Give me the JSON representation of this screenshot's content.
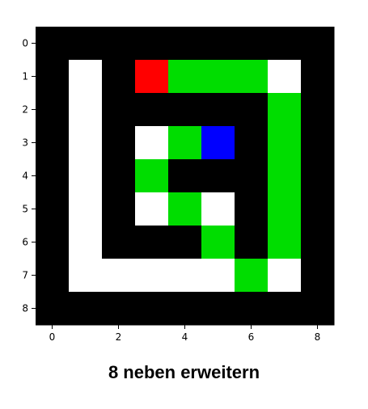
{
  "caption": "8 neben erweitern",
  "palette": {
    "0": "#000000",
    "1": "#ffffff",
    "2": "#00dd00",
    "3": "#ff0000",
    "4": "#0000ff"
  },
  "grid": {
    "rows": 9,
    "cols": 9,
    "cells": [
      [
        0,
        0,
        0,
        0,
        0,
        0,
        0,
        0,
        0
      ],
      [
        0,
        1,
        0,
        3,
        2,
        2,
        2,
        1,
        0
      ],
      [
        0,
        1,
        0,
        0,
        0,
        0,
        0,
        2,
        0
      ],
      [
        0,
        1,
        0,
        1,
        2,
        4,
        0,
        2,
        0
      ],
      [
        0,
        1,
        0,
        2,
        0,
        0,
        0,
        2,
        0
      ],
      [
        0,
        1,
        0,
        1,
        2,
        1,
        0,
        2,
        0
      ],
      [
        0,
        1,
        0,
        0,
        0,
        2,
        0,
        2,
        0
      ],
      [
        0,
        1,
        1,
        1,
        1,
        1,
        2,
        1,
        0
      ],
      [
        0,
        0,
        0,
        0,
        0,
        0,
        0,
        0,
        0
      ]
    ]
  },
  "axes": {
    "x_ticks": [
      "0",
      "2",
      "4",
      "6",
      "8"
    ],
    "y_ticks": [
      "0",
      "1",
      "2",
      "3",
      "4",
      "5",
      "6",
      "7",
      "8"
    ]
  }
}
